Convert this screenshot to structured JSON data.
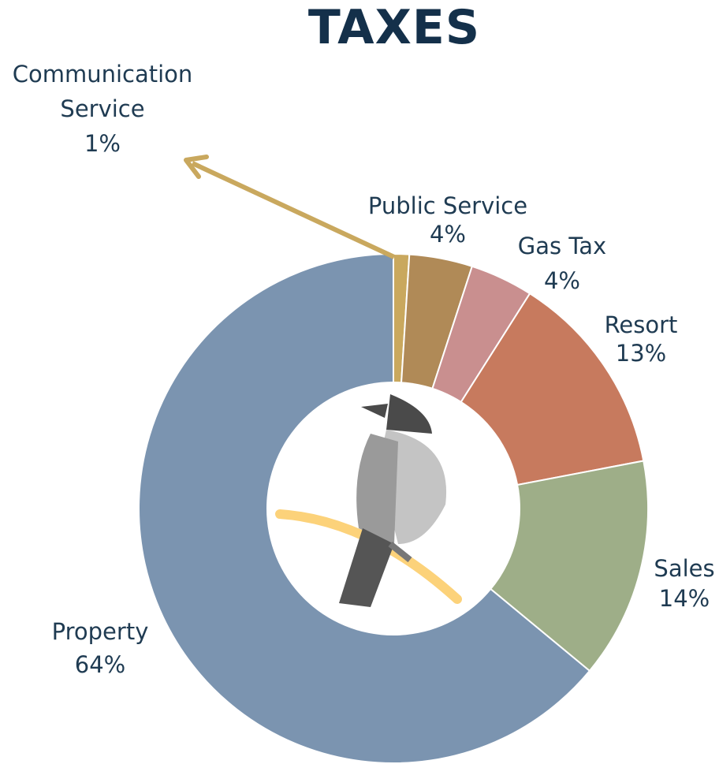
{
  "chart_data": {
    "type": "donut",
    "title": "TAXES",
    "categories": [
      "Communication Service",
      "Public Service",
      "Gas Tax",
      "Resort",
      "Sales",
      "Property"
    ],
    "values": [
      1,
      4,
      4,
      13,
      14,
      64
    ],
    "value_labels": [
      "1%",
      "4%",
      "4%",
      "13%",
      "14%",
      "64%"
    ],
    "colors": [
      "#c9a85e",
      "#b08a57",
      "#c98f8f",
      "#c77a5e",
      "#9eae88",
      "#7b94b0"
    ]
  }
}
